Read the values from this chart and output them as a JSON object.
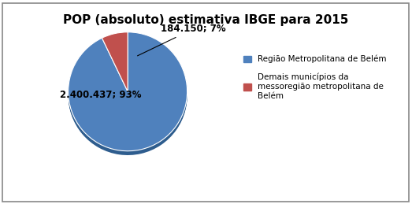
{
  "title": "POP (absoluto) estimativa IBGE para 2015",
  "slices": [
    2400437,
    184150
  ],
  "colors": [
    "#4F81BD",
    "#C0504D"
  ],
  "shadow_colors": [
    "#2E5D8E",
    "#8B2F2F"
  ],
  "labels_text": [
    "2.400.437; 93%",
    "184.150; 7%"
  ],
  "legend_labels": [
    "Região Metropolitana de Belém",
    "Demais municípios da\nmessoregião metropolitana de\nBelém"
  ],
  "startangle": 90,
  "title_fontsize": 11,
  "label_fontsize": 8.5,
  "legend_fontsize": 7.5,
  "figsize": [
    5.23,
    2.59
  ],
  "dpi": 100,
  "background_color": "#ffffff",
  "border_color": "#888888"
}
